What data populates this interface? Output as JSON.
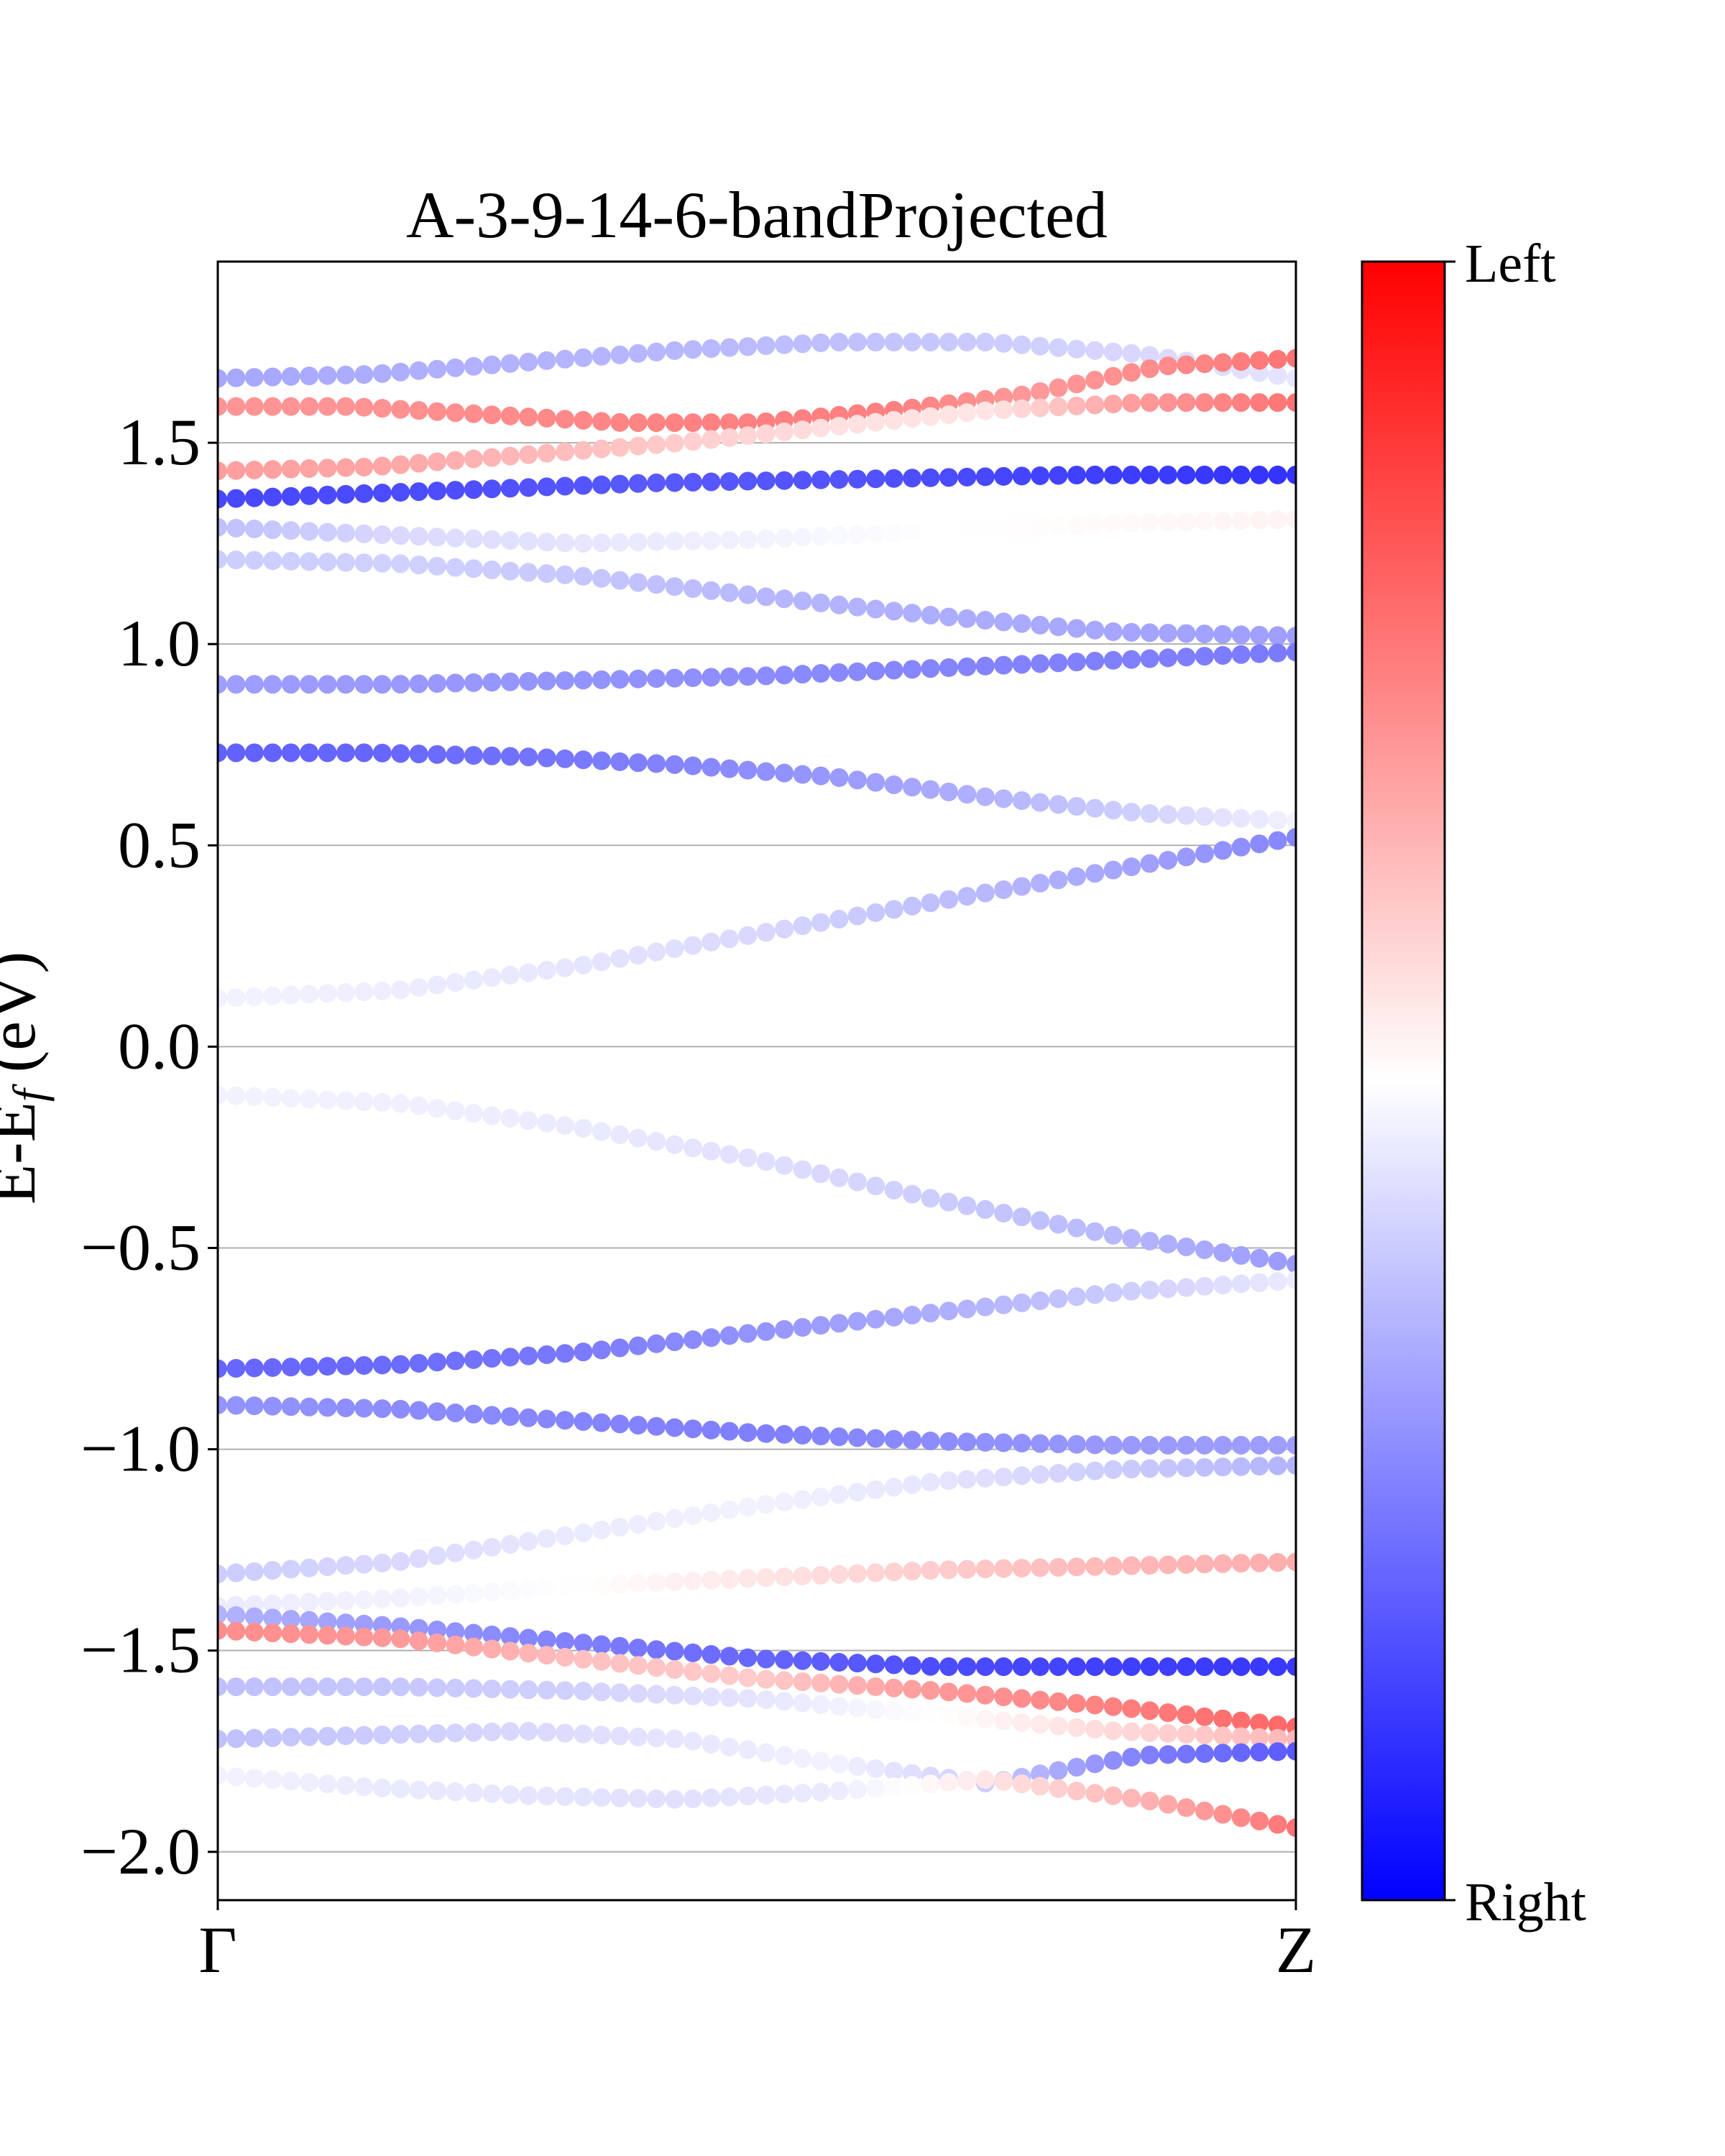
{
  "chart_data": {
    "type": "scatter",
    "title": "A-3-9-14-6-bandProjected",
    "ylabel": "E-E",
    "ylabel_sub": "f",
    "ylabel_unit": " (eV)",
    "xlim": [
      0,
      1
    ],
    "ylim": [
      -2.12,
      1.95
    ],
    "grid": "horizontal",
    "x_ticks": [
      {
        "value": 0,
        "label": "Γ"
      },
      {
        "value": 1,
        "label": "Z"
      }
    ],
    "y_ticks": [
      {
        "value": 1.5,
        "label": "1.5"
      },
      {
        "value": 1.0,
        "label": "1.0"
      },
      {
        "value": 0.5,
        "label": "0.5"
      },
      {
        "value": 0.0,
        "label": "0.0"
      },
      {
        "value": -0.5,
        "label": "−0.5"
      },
      {
        "value": -1.0,
        "label": "−1.0"
      },
      {
        "value": -1.5,
        "label": "−1.5"
      },
      {
        "value": -2.0,
        "label": "−2.0"
      }
    ],
    "colorbar": {
      "colormap": "bwr",
      "top_label": "Left",
      "bottom_label": "Right",
      "colors": {
        "top": "#ff0000",
        "middle": "#ffffff",
        "bottom": "#0000ff"
      }
    },
    "color_scale_note": "projection value p in [-1, 1]; -1 = Right (blue), +1 = Left (red)",
    "bands": [
      {
        "energy": [
          1.66,
          1.67,
          1.7,
          1.73,
          1.75,
          1.75,
          1.72,
          1.66
        ],
        "projection": [
          -0.35,
          -0.32,
          -0.3,
          -0.28,
          -0.25,
          -0.2,
          -0.15,
          -0.1
        ]
      },
      {
        "energy": [
          1.59,
          1.59,
          1.57,
          1.55,
          1.55,
          1.58,
          1.62,
          1.69,
          1.71
        ],
        "projection": [
          0.42,
          0.42,
          0.45,
          0.48,
          0.5,
          0.5,
          0.4,
          0.45,
          0.55
        ]
      },
      {
        "energy": [
          1.43,
          1.44,
          1.47,
          1.5,
          1.54,
          1.58,
          1.6,
          1.6
        ],
        "projection": [
          0.38,
          0.35,
          0.28,
          0.2,
          0.12,
          0.1,
          0.4,
          0.55
        ]
      },
      {
        "energy": [
          1.36,
          1.38,
          1.4,
          1.41,
          1.42,
          1.42
        ],
        "projection": [
          -0.72,
          -0.7,
          -0.65,
          -0.68,
          -0.75,
          -0.8
        ]
      },
      {
        "energy": [
          1.29,
          1.27,
          1.25,
          1.26,
          1.28,
          1.3,
          1.31
        ],
        "projection": [
          -0.25,
          -0.15,
          -0.1,
          -0.05,
          0.0,
          0.02,
          0.05
        ]
      },
      {
        "energy": [
          1.21,
          1.2,
          1.17,
          1.12,
          1.07,
          1.03,
          1.02
        ],
        "projection": [
          -0.2,
          -0.18,
          -0.22,
          -0.28,
          -0.32,
          -0.35,
          -0.38
        ]
      },
      {
        "energy": [
          0.9,
          0.9,
          0.91,
          0.92,
          0.94,
          0.96,
          0.98
        ],
        "projection": [
          -0.38,
          -0.4,
          -0.42,
          -0.45,
          -0.48,
          -0.5,
          -0.52
        ]
      },
      {
        "energy": [
          0.73,
          0.73,
          0.72,
          0.7,
          0.67,
          0.62,
          0.58,
          0.56
        ],
        "projection": [
          -0.62,
          -0.6,
          -0.55,
          -0.48,
          -0.4,
          -0.3,
          -0.18,
          -0.05
        ]
      },
      {
        "energy": [
          0.12,
          0.14,
          0.2,
          0.28,
          0.36,
          0.44,
          0.52
        ],
        "projection": [
          -0.05,
          -0.07,
          -0.1,
          -0.15,
          -0.25,
          -0.35,
          -0.48
        ]
      },
      {
        "energy": [
          -0.12,
          -0.14,
          -0.2,
          -0.28,
          -0.38,
          -0.47,
          -0.54
        ],
        "projection": [
          -0.05,
          -0.06,
          -0.08,
          -0.12,
          -0.2,
          -0.28,
          -0.4
        ]
      },
      {
        "energy": [
          -0.8,
          -0.79,
          -0.76,
          -0.71,
          -0.66,
          -0.61,
          -0.58
        ],
        "projection": [
          -0.6,
          -0.58,
          -0.52,
          -0.42,
          -0.32,
          -0.2,
          -0.08
        ]
      },
      {
        "energy": [
          -0.89,
          -0.9,
          -0.93,
          -0.96,
          -0.98,
          -0.99,
          -0.99
        ],
        "projection": [
          -0.42,
          -0.45,
          -0.48,
          -0.5,
          -0.45,
          -0.4,
          -0.38
        ]
      },
      {
        "energy": [
          -1.31,
          -1.28,
          -1.21,
          -1.14,
          -1.08,
          -1.05,
          -1.04
        ],
        "projection": [
          -0.2,
          -0.15,
          -0.08,
          -0.05,
          -0.1,
          -0.2,
          -0.3
        ]
      },
      {
        "energy": [
          -1.39,
          -1.37,
          -1.34,
          -1.32,
          -1.3,
          -1.29,
          -1.28
        ],
        "projection": [
          -0.08,
          -0.05,
          0.0,
          0.1,
          0.2,
          0.28,
          0.32
        ]
      },
      {
        "energy": [
          -1.41,
          -1.44,
          -1.48,
          -1.52,
          -1.54,
          -1.54,
          -1.54
        ],
        "projection": [
          -0.3,
          -0.4,
          -0.5,
          -0.6,
          -0.7,
          -0.75,
          -0.78
        ]
      },
      {
        "energy": [
          -1.45,
          -1.47,
          -1.52,
          -1.57,
          -1.6,
          -1.64,
          -1.69
        ],
        "projection": [
          0.45,
          0.4,
          0.25,
          0.2,
          0.4,
          0.5,
          0.6
        ]
      },
      {
        "energy": [
          -1.59,
          -1.59,
          -1.6,
          -1.62,
          -1.66,
          -1.7,
          -1.72
        ],
        "projection": [
          -0.25,
          -0.22,
          -0.18,
          -0.1,
          0.0,
          0.15,
          0.28
        ]
      },
      {
        "energy": [
          -1.72,
          -1.71,
          -1.7,
          -1.72,
          -1.78,
          -1.83,
          -1.76,
          -1.75
        ],
        "projection": [
          -0.25,
          -0.2,
          -0.15,
          -0.1,
          -0.05,
          -0.2,
          -0.5,
          -0.65
        ]
      },
      {
        "energy": [
          -1.81,
          -1.84,
          -1.86,
          -1.87,
          -1.85,
          -1.82,
          -1.87,
          -1.94
        ],
        "projection": [
          -0.05,
          -0.08,
          -0.1,
          -0.12,
          -0.08,
          0.1,
          0.3,
          0.55
        ]
      }
    ]
  }
}
